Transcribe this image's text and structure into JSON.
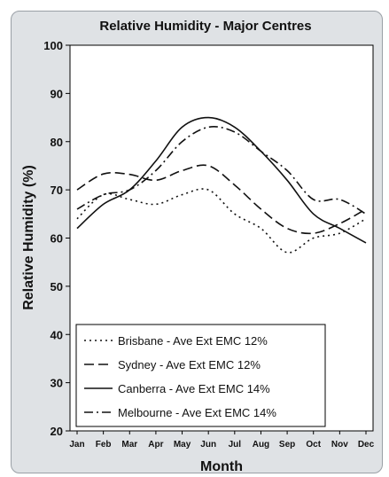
{
  "chart_data": {
    "type": "line",
    "title": "Relative Humidity - Major Centres",
    "xlabel": "Month",
    "ylabel": "Relative Humidity (%)",
    "ylim": [
      20,
      100
    ],
    "yticks": [
      20,
      30,
      40,
      50,
      60,
      70,
      80,
      90,
      100
    ],
    "categories": [
      "Jan",
      "Feb",
      "Mar",
      "Apr",
      "May",
      "Jun",
      "Jul",
      "Aug",
      "Sep",
      "Oct",
      "Nov",
      "Dec"
    ],
    "grid": false,
    "legend_position": "bottom-left",
    "series": [
      {
        "name": "Brisbane - Ave Ext EMC 12%",
        "dash": "dotted",
        "values": [
          64,
          69,
          68,
          67,
          69,
          70,
          65,
          62,
          57,
          60,
          61,
          64
        ]
      },
      {
        "name": "Sydney - Ave Ext EMC 12%",
        "dash": "dashed",
        "values": [
          70,
          73.3,
          73.2,
          72,
          74,
          75,
          71,
          66,
          62,
          61,
          63,
          66
        ]
      },
      {
        "name": "Canberra - Ave Ext EMC 14%",
        "dash": "solid",
        "values": [
          62,
          67,
          70,
          76,
          83,
          85,
          83,
          78,
          72,
          65,
          62,
          59
        ]
      },
      {
        "name": "Melbourne - Ave Ext EMC 14%",
        "dash": "dashdot",
        "values": [
          66,
          69,
          70,
          74,
          80,
          83,
          82,
          78,
          74,
          68,
          68,
          65
        ]
      }
    ]
  }
}
